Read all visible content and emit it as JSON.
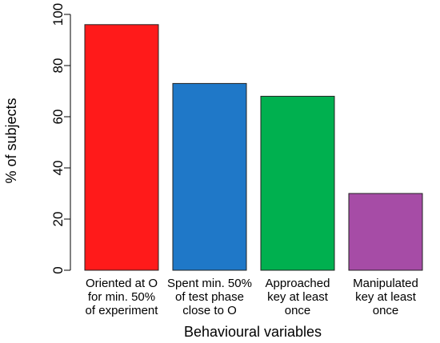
{
  "chart_data": {
    "type": "bar",
    "title": "",
    "xlabel": "Behavioural variables",
    "ylabel": "% of subjects",
    "ylim": [
      0,
      100
    ],
    "yticks": [
      0,
      20,
      40,
      60,
      80,
      100
    ],
    "grid": false,
    "categories": [
      [
        "Oriented at O",
        "for min. 50%",
        "of experiment"
      ],
      [
        "Spent min. 50%",
        "of test phase",
        "close to O"
      ],
      [
        "Approached",
        "key at least",
        "once"
      ],
      [
        "Manipulated",
        "key at least",
        "once"
      ]
    ],
    "values": [
      96,
      73,
      68,
      30
    ],
    "colors": [
      "#ff1a1a",
      "#1f78c8",
      "#00b04f",
      "#a64ca6"
    ]
  }
}
